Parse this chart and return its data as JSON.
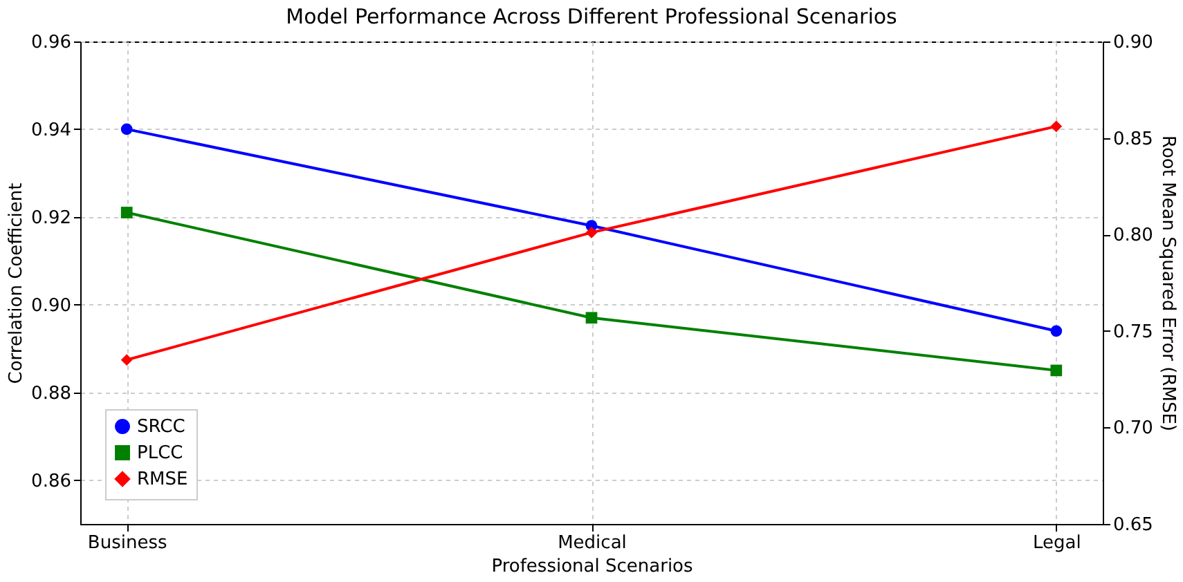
{
  "chart_data": {
    "type": "line",
    "title": "Model Performance Across Different Professional Scenarios",
    "xlabel": "Professional Scenarios",
    "ylabel": "Correlation Coefficient",
    "y2label": "Root Mean Squared Error (RMSE)",
    "categories": [
      "Business",
      "Medical",
      "Legal"
    ],
    "series": [
      {
        "name": "SRCC",
        "color": "#0000ff",
        "marker": "circle",
        "values": [
          0.94,
          0.918,
          0.894
        ]
      },
      {
        "name": "PLCC",
        "color": "#008000",
        "marker": "square",
        "values": [
          0.921,
          0.897,
          0.885
        ]
      },
      {
        "name": "RMSE",
        "color": "#ff0000",
        "marker": "diamond",
        "axis": "y2",
        "values": [
          0.735,
          0.801,
          0.856
        ]
      }
    ],
    "ylim": [
      0.85,
      0.96
    ],
    "yticks": [
      0.86,
      0.88,
      {
        "value": 0.9,
        "label": "0.90"
      },
      0.92,
      0.94,
      0.96
    ],
    "y2lim": [
      0.65,
      0.9
    ],
    "y2ticks": [
      0.65,
      {
        "value": 0.7,
        "label": "0.70"
      },
      0.75,
      {
        "value": 0.8,
        "label": "0.80"
      },
      0.85,
      {
        "value": 0.9,
        "label": "0.90"
      }
    ],
    "grid": true,
    "legend": "bottom left",
    "line_style": "solid"
  }
}
